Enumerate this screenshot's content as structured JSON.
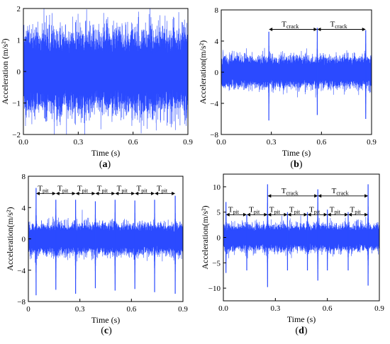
{
  "chart_data": [
    {
      "id": "a",
      "type": "line",
      "panel_label": "(a)",
      "xlabel": "Time (s)",
      "ylabel": "Acceleration (m/s²)",
      "xlim": [
        0.0,
        0.9
      ],
      "ylim": [
        -2,
        2
      ],
      "x_ticks": [
        0.0,
        0.3,
        0.6,
        0.9
      ],
      "x_tick_labels": [
        "0.0",
        "0.3",
        "0.6",
        "0.9"
      ],
      "y_ticks": [
        -2,
        -1,
        0,
        1,
        2
      ],
      "y_tick_labels": [
        "−2",
        "−1",
        "0",
        "1",
        "2"
      ],
      "signal": {
        "noise_amplitude": 1.0,
        "baseline": 0.0
      },
      "impulses": [],
      "intervals": [],
      "color": "#2b4bff"
    },
    {
      "id": "b",
      "type": "line",
      "panel_label": "(b)",
      "xlabel": "Time (s)",
      "ylabel": "Acceleration(m/s²)",
      "xlim": [
        0.0,
        0.9
      ],
      "ylim": [
        -8,
        8
      ],
      "x_ticks": [
        0.0,
        0.3,
        0.6,
        0.9
      ],
      "x_tick_labels": [
        "0.0",
        "0.3",
        "0.6",
        "0.9"
      ],
      "y_ticks": [
        -8,
        -4,
        0,
        4,
        8
      ],
      "y_tick_labels": [
        "−8",
        "−4",
        "0",
        "4",
        "8"
      ],
      "signal": {
        "noise_amplitude": 1.5,
        "baseline": 0.0
      },
      "impulses": [
        {
          "t": 0.285,
          "max": 5.2,
          "min": -6.2
        },
        {
          "t": 0.575,
          "max": 5.7,
          "min": -5.5
        },
        {
          "t": 0.865,
          "max": 5.4,
          "min": -6.0
        }
      ],
      "intervals": [
        {
          "label_main": "T",
          "label_sub": "crack",
          "t_start": 0.285,
          "t_end": 0.575,
          "y": 5.5
        },
        {
          "label_main": "T",
          "label_sub": "crack",
          "t_start": 0.575,
          "t_end": 0.865,
          "y": 5.5
        }
      ],
      "color": "#2b4bff"
    },
    {
      "id": "c",
      "type": "line",
      "panel_label": "(c)",
      "xlabel": "Time (s)",
      "ylabel": "Acceleration(m/s²)",
      "xlim": [
        0.0,
        0.9
      ],
      "ylim": [
        -8,
        8
      ],
      "x_ticks": [
        0.0,
        0.3,
        0.6,
        0.9
      ],
      "x_tick_labels": [
        "0",
        "0.3",
        "0.6",
        "0.9"
      ],
      "y_ticks": [
        -8,
        -4,
        0,
        4,
        8
      ],
      "y_tick_labels": [
        "−8",
        "−4",
        "0",
        "4",
        "8"
      ],
      "signal": {
        "noise_amplitude": 1.5,
        "baseline": 0.0
      },
      "impulses": [
        {
          "t": 0.045,
          "max": 6.5,
          "min": -7.2
        },
        {
          "t": 0.16,
          "max": 5.0,
          "min": -6.5
        },
        {
          "t": 0.275,
          "max": 5.0,
          "min": -7.0
        },
        {
          "t": 0.39,
          "max": 4.8,
          "min": -6.3
        },
        {
          "t": 0.505,
          "max": 5.0,
          "min": -6.6
        },
        {
          "t": 0.62,
          "max": 4.9,
          "min": -6.4
        },
        {
          "t": 0.735,
          "max": 5.0,
          "min": -6.8
        },
        {
          "t": 0.855,
          "max": 5.5,
          "min": -7.0
        }
      ],
      "intervals": [
        {
          "label_main": "T",
          "label_sub": "pit",
          "t_start": 0.045,
          "t_end": 0.16,
          "y": 5.8
        },
        {
          "label_main": "T",
          "label_sub": "pit",
          "t_start": 0.16,
          "t_end": 0.275,
          "y": 5.8
        },
        {
          "label_main": "T",
          "label_sub": "pit",
          "t_start": 0.275,
          "t_end": 0.39,
          "y": 5.8
        },
        {
          "label_main": "T",
          "label_sub": "pit",
          "t_start": 0.39,
          "t_end": 0.505,
          "y": 5.8
        },
        {
          "label_main": "T",
          "label_sub": "pit",
          "t_start": 0.505,
          "t_end": 0.62,
          "y": 5.8
        },
        {
          "label_main": "T",
          "label_sub": "pit",
          "t_start": 0.62,
          "t_end": 0.735,
          "y": 5.8
        },
        {
          "label_main": "T",
          "label_sub": "pit",
          "t_start": 0.735,
          "t_end": 0.855,
          "y": 5.8
        }
      ],
      "color": "#2b4bff"
    },
    {
      "id": "d",
      "type": "line",
      "panel_label": "(d)",
      "xlabel": "Time (s)",
      "ylabel": "Acceleration(m/s²)",
      "xlim": [
        0.0,
        0.9
      ],
      "ylim": [
        -12.5,
        12.5
      ],
      "x_ticks": [
        0.0,
        0.3,
        0.6,
        0.9
      ],
      "x_tick_labels": [
        "0.0",
        "0.3",
        "0.6",
        "0.9"
      ],
      "y_ticks": [
        -10,
        -5,
        0,
        5,
        10
      ],
      "y_tick_labels": [
        "−10",
        "−5",
        "0",
        "5",
        "10"
      ],
      "signal": {
        "noise_amplitude": 2.0,
        "baseline": 0.0
      },
      "impulses": [
        {
          "t": 0.015,
          "max": 7.0,
          "min": -7.0
        },
        {
          "t": 0.135,
          "max": 4.5,
          "min": -6.5
        },
        {
          "t": 0.255,
          "max": 10.5,
          "min": -9.8
        },
        {
          "t": 0.37,
          "max": 5.0,
          "min": -6.5
        },
        {
          "t": 0.485,
          "max": 5.0,
          "min": -6.5
        },
        {
          "t": 0.545,
          "max": 9.5,
          "min": -8.5
        },
        {
          "t": 0.6,
          "max": 5.5,
          "min": -6.5
        },
        {
          "t": 0.72,
          "max": 5.0,
          "min": -6.5
        },
        {
          "t": 0.835,
          "max": 10.5,
          "min": -9.5
        }
      ],
      "intervals": [
        {
          "label_main": "T",
          "label_sub": "pit",
          "t_start": 0.015,
          "t_end": 0.135,
          "y": 4.5
        },
        {
          "label_main": "T",
          "label_sub": "pit",
          "t_start": 0.135,
          "t_end": 0.255,
          "y": 4.5
        },
        {
          "label_main": "T",
          "label_sub": "pit",
          "t_start": 0.255,
          "t_end": 0.37,
          "y": 4.5
        },
        {
          "label_main": "T",
          "label_sub": "pit",
          "t_start": 0.37,
          "t_end": 0.485,
          "y": 4.5
        },
        {
          "label_main": "T",
          "label_sub": "pit",
          "t_start": 0.485,
          "t_end": 0.6,
          "y": 4.5
        },
        {
          "label_main": "T",
          "label_sub": "pit",
          "t_start": 0.6,
          "t_end": 0.72,
          "y": 4.5
        },
        {
          "label_main": "T",
          "label_sub": "pit",
          "t_start": 0.72,
          "t_end": 0.835,
          "y": 4.5
        },
        {
          "label_main": "T",
          "label_sub": "crack",
          "t_start": 0.255,
          "t_end": 0.545,
          "y": 8.2
        },
        {
          "label_main": "T",
          "label_sub": "crack",
          "t_start": 0.545,
          "t_end": 0.835,
          "y": 8.2
        }
      ],
      "color": "#2b4bff"
    }
  ]
}
